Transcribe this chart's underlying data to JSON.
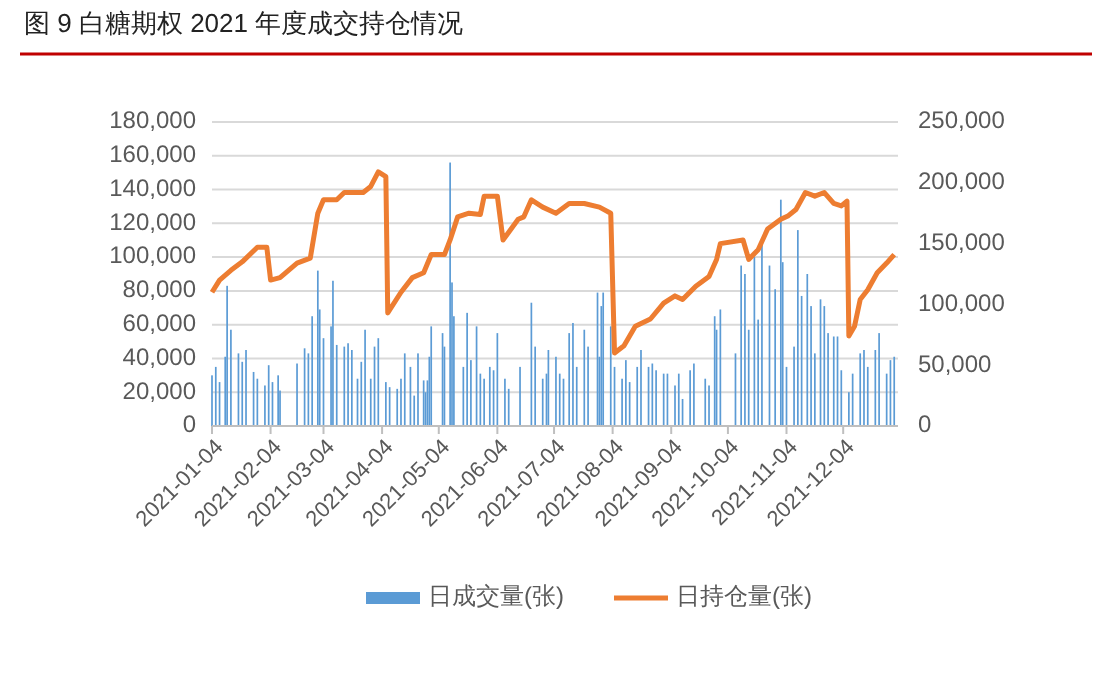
{
  "chart_data": {
    "type": "bar",
    "title": "图 9   白糖期权 2021 年度成交持仓情况",
    "xlim": [
      "2021-01-04",
      "2022-01-02"
    ],
    "xticks": [
      "2021-01-04",
      "2021-02-04",
      "2021-03-04",
      "2021-04-04",
      "2021-05-04",
      "2021-06-04",
      "2021-07-04",
      "2021-08-04",
      "2021-09-04",
      "2021-10-04",
      "2021-11-04",
      "2021-12-04"
    ],
    "ylim": [
      0,
      180000
    ],
    "yticks": [
      0,
      {
        "value": 20000,
        "label": "20,000"
      },
      {
        "value": 40000,
        "label": "40,000"
      },
      {
        "value": 60000,
        "label": "60,000"
      },
      {
        "value": 80000,
        "label": "80,000"
      },
      {
        "value": 100000,
        "label": "100,000"
      },
      {
        "value": 120000,
        "label": "120,000"
      },
      {
        "value": 140000,
        "label": "140,000"
      },
      {
        "value": 160000,
        "label": "160,000"
      },
      {
        "value": 180000,
        "label": "180,000"
      }
    ],
    "y2lim": [
      0,
      250000
    ],
    "y2ticks": [
      0,
      {
        "value": 50000,
        "label": "50,000"
      },
      {
        "value": 100000,
        "label": "100,000"
      },
      {
        "value": 150000,
        "label": "150,000"
      },
      {
        "value": 200000,
        "label": "200,000"
      },
      {
        "value": 250000,
        "label": "250,000"
      }
    ],
    "grid": "y",
    "legend": "bottom",
    "series": [
      {
        "name": "日成交量(张)",
        "color": "#5b9bd5",
        "x": [
          "2021-01-04",
          "2021-01-06",
          "2021-01-08",
          "2021-01-11",
          "2021-01-12",
          "2021-01-14",
          "2021-01-18",
          "2021-01-20",
          "2021-01-22",
          "2021-01-26",
          "2021-01-28",
          "2021-02-01",
          "2021-02-03",
          "2021-02-05",
          "2021-02-08",
          "2021-02-09",
          "2021-02-18",
          "2021-02-22",
          "2021-02-24",
          "2021-02-26",
          "2021-03-01",
          "2021-03-02",
          "2021-03-04",
          "2021-03-08",
          "2021-03-09",
          "2021-03-11",
          "2021-03-15",
          "2021-03-17",
          "2021-03-19",
          "2021-03-22",
          "2021-03-24",
          "2021-03-26",
          "2021-03-29",
          "2021-03-31",
          "2021-04-02",
          "2021-04-06",
          "2021-04-08",
          "2021-04-12",
          "2021-04-14",
          "2021-04-16",
          "2021-04-19",
          "2021-04-21",
          "2021-04-23",
          "2021-04-26",
          "2021-04-27",
          "2021-04-28",
          "2021-04-29",
          "2021-04-30",
          "2021-05-06",
          "2021-05-07",
          "2021-05-10",
          "2021-05-11",
          "2021-05-12",
          "2021-05-17",
          "2021-05-19",
          "2021-05-21",
          "2021-05-24",
          "2021-05-26",
          "2021-05-28",
          "2021-05-31",
          "2021-06-02",
          "2021-06-04",
          "2021-06-08",
          "2021-06-10",
          "2021-06-16",
          "2021-06-22",
          "2021-06-24",
          "2021-06-28",
          "2021-06-30",
          "2021-07-01",
          "2021-07-05",
          "2021-07-07",
          "2021-07-09",
          "2021-07-12",
          "2021-07-14",
          "2021-07-16",
          "2021-07-20",
          "2021-07-22",
          "2021-07-27",
          "2021-07-28",
          "2021-07-29",
          "2021-07-30",
          "2021-08-03",
          "2021-08-05",
          "2021-08-09",
          "2021-08-11",
          "2021-08-13",
          "2021-08-17",
          "2021-08-19",
          "2021-08-23",
          "2021-08-25",
          "2021-08-27",
          "2021-08-31",
          "2021-09-02",
          "2021-09-06",
          "2021-09-08",
          "2021-09-10",
          "2021-09-14",
          "2021-09-16",
          "2021-09-22",
          "2021-09-24",
          "2021-09-27",
          "2021-09-28",
          "2021-09-30",
          "2021-10-08",
          "2021-10-11",
          "2021-10-13",
          "2021-10-15",
          "2021-10-18",
          "2021-10-20",
          "2021-10-22",
          "2021-10-26",
          "2021-10-29",
          "2021-11-01",
          "2021-11-02",
          "2021-11-04",
          "2021-11-08",
          "2021-11-10",
          "2021-11-12",
          "2021-11-15",
          "2021-11-17",
          "2021-11-19",
          "2021-11-22",
          "2021-11-24",
          "2021-11-26",
          "2021-11-29",
          "2021-12-01",
          "2021-12-03",
          "2021-12-07",
          "2021-12-09",
          "2021-12-13",
          "2021-12-15",
          "2021-12-17",
          "2021-12-21",
          "2021-12-23",
          "2021-12-27",
          "2021-12-29",
          "2021-12-31"
        ],
        "values": [
          30000,
          35000,
          26000,
          41000,
          83000,
          57000,
          43000,
          38000,
          45000,
          32000,
          28000,
          24000,
          36000,
          26000,
          30000,
          21000,
          37000,
          46000,
          43000,
          65000,
          92000,
          69000,
          52000,
          59000,
          86000,
          48000,
          47000,
          49000,
          45000,
          28000,
          38000,
          57000,
          28000,
          47000,
          52000,
          26000,
          23000,
          22000,
          28000,
          43000,
          35000,
          18000,
          43000,
          27000,
          20000,
          27000,
          41000,
          59000,
          55000,
          47000,
          156000,
          85000,
          65000,
          35000,
          67000,
          39000,
          59000,
          31000,
          28000,
          35000,
          33000,
          55000,
          28000,
          22000,
          35000,
          73000,
          47000,
          28000,
          31000,
          45000,
          41000,
          31000,
          28000,
          55000,
          61000,
          35000,
          57000,
          47000,
          79000,
          41000,
          71000,
          79000,
          59000,
          35000,
          28000,
          39000,
          26000,
          35000,
          45000,
          35000,
          37000,
          33000,
          31000,
          31000,
          24000,
          31000,
          16000,
          33000,
          37000,
          28000,
          24000,
          65000,
          57000,
          69000,
          43000,
          95000,
          90000,
          57000,
          100000,
          63000,
          110000,
          95000,
          81000,
          134000,
          97000,
          35000,
          47000,
          116000,
          77000,
          90000,
          71000,
          43000,
          75000,
          71000,
          55000,
          53000,
          53000,
          33000,
          20000,
          31000,
          43000,
          45000,
          35000,
          45000,
          55000,
          31000,
          39000,
          41000
        ]
      },
      {
        "name": "日持仓量(张)",
        "type": "line",
        "axis": "y2",
        "color": "#ed7d31",
        "x": [
          "2021-01-04",
          "2021-01-08",
          "2021-01-14",
          "2021-01-20",
          "2021-01-28",
          "2021-02-02",
          "2021-02-04",
          "2021-02-09",
          "2021-02-18",
          "2021-02-25",
          "2021-03-01",
          "2021-03-04",
          "2021-03-11",
          "2021-03-15",
          "2021-03-25",
          "2021-03-29",
          "2021-04-02",
          "2021-04-06",
          "2021-04-07",
          "2021-04-14",
          "2021-04-20",
          "2021-04-26",
          "2021-04-30",
          "2021-05-07",
          "2021-05-10",
          "2021-05-14",
          "2021-05-20",
          "2021-05-26",
          "2021-05-28",
          "2021-06-04",
          "2021-06-07",
          "2021-06-15",
          "2021-06-18",
          "2021-06-22",
          "2021-06-28",
          "2021-07-05",
          "2021-07-12",
          "2021-07-20",
          "2021-07-28",
          "2021-08-03",
          "2021-08-05",
          "2021-08-10",
          "2021-08-16",
          "2021-08-24",
          "2021-08-31",
          "2021-09-06",
          "2021-09-10",
          "2021-09-17",
          "2021-09-24",
          "2021-09-28",
          "2021-09-30",
          "2021-10-12",
          "2021-10-15",
          "2021-10-20",
          "2021-10-25",
          "2021-11-01",
          "2021-11-05",
          "2021-11-09",
          "2021-11-14",
          "2021-11-19",
          "2021-11-24",
          "2021-11-29",
          "2021-12-03",
          "2021-12-06",
          "2021-12-07",
          "2021-12-10",
          "2021-12-13",
          "2021-12-17",
          "2021-12-22",
          "2021-12-27",
          "2021-12-31"
        ],
        "values": [
          110000,
          120000,
          128000,
          135000,
          147000,
          147000,
          120000,
          122000,
          134000,
          138000,
          175000,
          186000,
          186000,
          192000,
          192000,
          197000,
          209000,
          205000,
          93000,
          110000,
          122000,
          126000,
          141000,
          141000,
          153000,
          172000,
          175000,
          174000,
          189000,
          189000,
          153000,
          170000,
          172000,
          186000,
          180000,
          175000,
          183000,
          183000,
          180000,
          175000,
          60000,
          66000,
          82000,
          88000,
          101000,
          107000,
          104000,
          115000,
          123000,
          137000,
          150000,
          153000,
          137000,
          145000,
          162000,
          170000,
          173000,
          178000,
          192000,
          189000,
          192000,
          183000,
          181000,
          185000,
          74000,
          82000,
          104000,
          112000,
          126000,
          134000,
          141000
        ]
      }
    ]
  }
}
